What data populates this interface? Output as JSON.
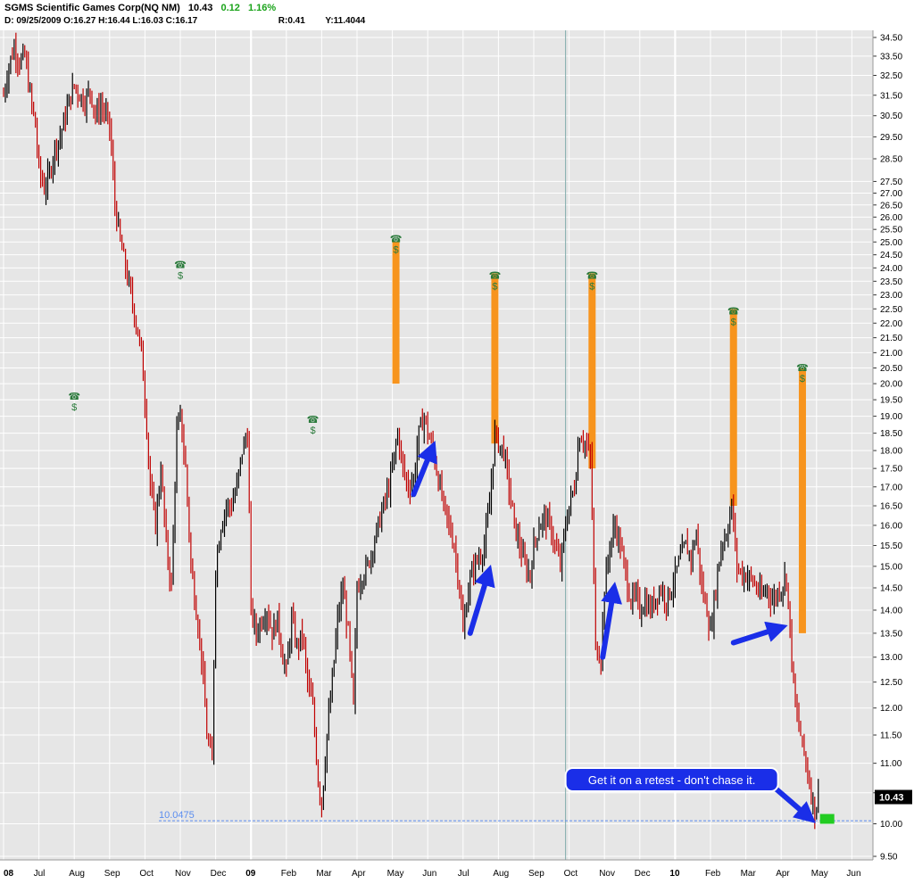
{
  "header": {
    "symbol_name": "SGMS Scientific Games Corp(NQ NM)",
    "last": "10.43",
    "change": "0.12",
    "change_pct": "1.16%",
    "date_line": "D:  09/25/2009  O:16.27  H:16.44  L:16.03  C:16.17",
    "r_value": "R:0.41",
    "y_value": "Y:11.4044"
  },
  "colors": {
    "up_candle": "#000000",
    "down_candle": "#c00000",
    "event_bar": "#f7941d",
    "arrow": "#1a2ee8",
    "price_tag_bg": "#000000",
    "current_marker": "#22cc22",
    "support_line": "#5b8def",
    "plot_bg": "#e6e6e6",
    "grid": "#ffffff"
  },
  "chart_data": {
    "type": "candlestick",
    "y_scale": "log",
    "ylim": [
      9.3,
      35.0
    ],
    "y_ticks": [
      "34.50",
      "33.50",
      "32.50",
      "31.50",
      "30.50",
      "29.50",
      "28.50",
      "27.50",
      "27.00",
      "26.50",
      "26.00",
      "25.50",
      "25.00",
      "24.50",
      "24.00",
      "23.50",
      "23.00",
      "22.50",
      "22.00",
      "21.50",
      "21.00",
      "20.50",
      "20.00",
      "19.50",
      "19.00",
      "18.50",
      "18.00",
      "17.50",
      "17.00",
      "16.50",
      "16.00",
      "15.50",
      "15.00",
      "14.50",
      "14.00",
      "13.50",
      "13.00",
      "12.50",
      "12.00",
      "11.50",
      "11.00",
      "10.50",
      "10.00",
      "9.50"
    ],
    "x_labels": [
      "08",
      "Jul",
      "Aug",
      "Sep",
      "Oct",
      "Nov",
      "Dec",
      "09",
      "Feb",
      "Mar",
      "Apr",
      "May",
      "Jun",
      "Jul",
      "Aug",
      "Sep",
      "Oct",
      "Nov",
      "Dec",
      "10",
      "Feb",
      "Mar",
      "Apr",
      "May",
      "Jun"
    ],
    "x_label_month_index": [
      0,
      1,
      2,
      3,
      4,
      5,
      6,
      7,
      8,
      9,
      10,
      11,
      12,
      13,
      14,
      15,
      16,
      17,
      18,
      19,
      20,
      21,
      22,
      23,
      24
    ],
    "close_path": [
      [
        0.0,
        31.5
      ],
      [
        0.15,
        33.0
      ],
      [
        0.3,
        34.0
      ],
      [
        0.45,
        33.2
      ],
      [
        0.6,
        33.5
      ],
      [
        0.75,
        31.5
      ],
      [
        0.9,
        30.0
      ],
      [
        1.0,
        28.0
      ],
      [
        1.15,
        27.2
      ],
      [
        1.3,
        27.8
      ],
      [
        1.45,
        29.0
      ],
      [
        1.6,
        29.5
      ],
      [
        1.75,
        30.5
      ],
      [
        1.9,
        31.5
      ],
      [
        2.0,
        32.0
      ],
      [
        2.15,
        31.5
      ],
      [
        2.3,
        31.2
      ],
      [
        2.45,
        31.8
      ],
      [
        2.6,
        30.5
      ],
      [
        2.75,
        31.0
      ],
      [
        2.9,
        30.5
      ],
      [
        3.0,
        30.0
      ],
      [
        3.15,
        26.5
      ],
      [
        3.3,
        25.0
      ],
      [
        3.45,
        24.0
      ],
      [
        3.6,
        23.0
      ],
      [
        3.75,
        22.0
      ],
      [
        3.9,
        21.0
      ],
      [
        4.0,
        19.5
      ],
      [
        4.15,
        17.0
      ],
      [
        4.3,
        16.0
      ],
      [
        4.45,
        17.5
      ],
      [
        4.6,
        15.5
      ],
      [
        4.75,
        14.5
      ],
      [
        4.9,
        18.5
      ],
      [
        5.0,
        19.0
      ],
      [
        5.15,
        17.5
      ],
      [
        5.3,
        15.0
      ],
      [
        5.45,
        14.0
      ],
      [
        5.6,
        13.0
      ],
      [
        5.75,
        11.5
      ],
      [
        5.9,
        11.0
      ],
      [
        6.0,
        15.0
      ],
      [
        6.15,
        16.0
      ],
      [
        6.3,
        16.5
      ],
      [
        6.45,
        16.5
      ],
      [
        6.6,
        17.0
      ],
      [
        6.75,
        18.0
      ],
      [
        6.9,
        18.5
      ],
      [
        7.0,
        14.0
      ],
      [
        7.15,
        13.5
      ],
      [
        7.3,
        13.8
      ],
      [
        7.45,
        14.0
      ],
      [
        7.6,
        13.5
      ],
      [
        7.75,
        13.8
      ],
      [
        7.9,
        13.0
      ],
      [
        8.0,
        12.7
      ],
      [
        8.15,
        13.8
      ],
      [
        8.3,
        13.2
      ],
      [
        8.45,
        13.5
      ],
      [
        8.6,
        12.5
      ],
      [
        8.75,
        12.0
      ],
      [
        8.9,
        10.7
      ],
      [
        9.0,
        10.3
      ],
      [
        9.15,
        11.5
      ],
      [
        9.3,
        12.5
      ],
      [
        9.45,
        13.8
      ],
      [
        9.6,
        14.5
      ],
      [
        9.75,
        13.5
      ],
      [
        9.9,
        12.0
      ],
      [
        10.0,
        14.5
      ],
      [
        10.15,
        14.8
      ],
      [
        10.3,
        15.0
      ],
      [
        10.45,
        15.5
      ],
      [
        10.6,
        16.0
      ],
      [
        10.75,
        16.5
      ],
      [
        10.9,
        17.0
      ],
      [
        11.0,
        17.5
      ],
      [
        11.15,
        18.5
      ],
      [
        11.3,
        17.5
      ],
      [
        11.45,
        17.0
      ],
      [
        11.6,
        17.2
      ],
      [
        11.75,
        18.5
      ],
      [
        11.9,
        19.0
      ],
      [
        12.0,
        18.5
      ],
      [
        12.15,
        18.0
      ],
      [
        12.3,
        17.2
      ],
      [
        12.45,
        16.5
      ],
      [
        12.6,
        16.0
      ],
      [
        12.75,
        15.5
      ],
      [
        12.9,
        14.5
      ],
      [
        13.0,
        13.5
      ],
      [
        13.15,
        14.5
      ],
      [
        13.3,
        15.0
      ],
      [
        13.45,
        15.2
      ],
      [
        13.6,
        15.5
      ],
      [
        13.75,
        16.5
      ],
      [
        13.9,
        18.5
      ],
      [
        14.0,
        18.2
      ],
      [
        14.15,
        18.0
      ],
      [
        14.3,
        17.0
      ],
      [
        14.45,
        16.0
      ],
      [
        14.6,
        15.5
      ],
      [
        14.75,
        15.0
      ],
      [
        14.9,
        14.8
      ],
      [
        15.0,
        15.5
      ],
      [
        15.15,
        16.0
      ],
      [
        15.3,
        16.2
      ],
      [
        15.45,
        16.0
      ],
      [
        15.6,
        15.5
      ],
      [
        15.75,
        15.0
      ],
      [
        15.9,
        16.0
      ],
      [
        16.0,
        16.5
      ],
      [
        16.15,
        17.0
      ],
      [
        16.3,
        18.5
      ],
      [
        16.45,
        18.2
      ],
      [
        16.6,
        17.8
      ],
      [
        16.75,
        13.2
      ],
      [
        16.9,
        13.0
      ],
      [
        17.0,
        14.5
      ],
      [
        17.15,
        15.5
      ],
      [
        17.3,
        16.0
      ],
      [
        17.45,
        15.5
      ],
      [
        17.6,
        14.8
      ],
      [
        17.75,
        14.2
      ],
      [
        17.9,
        14.3
      ],
      [
        18.0,
        14.0
      ],
      [
        18.15,
        14.2
      ],
      [
        18.3,
        14.0
      ],
      [
        18.45,
        14.3
      ],
      [
        18.6,
        14.5
      ],
      [
        18.75,
        14.2
      ],
      [
        18.9,
        14.5
      ],
      [
        19.0,
        14.8
      ],
      [
        19.15,
        15.2
      ],
      [
        19.3,
        15.5
      ],
      [
        19.45,
        15.2
      ],
      [
        19.6,
        15.8
      ],
      [
        19.75,
        14.5
      ],
      [
        19.9,
        14.0
      ],
      [
        20.0,
        13.5
      ],
      [
        20.15,
        14.5
      ],
      [
        20.3,
        15.5
      ],
      [
        20.45,
        15.8
      ],
      [
        20.6,
        16.5
      ],
      [
        20.75,
        15.0
      ],
      [
        20.9,
        14.8
      ],
      [
        21.0,
        14.8
      ],
      [
        21.15,
        14.7
      ],
      [
        21.3,
        14.5
      ],
      [
        21.45,
        14.3
      ],
      [
        21.6,
        14.5
      ],
      [
        21.75,
        14.2
      ],
      [
        21.9,
        14.4
      ],
      [
        22.0,
        14.5
      ],
      [
        22.15,
        14.8
      ],
      [
        22.25,
        13.5
      ],
      [
        22.4,
        12.0
      ],
      [
        22.55,
        11.5
      ],
      [
        22.7,
        11.0
      ],
      [
        22.85,
        10.5
      ],
      [
        22.95,
        10.2
      ],
      [
        23.05,
        10.43
      ]
    ],
    "event_bars": [
      {
        "month": 11.1,
        "from": 20.0,
        "to": 25.0
      },
      {
        "month": 13.9,
        "from": 18.2,
        "to": 23.8
      },
      {
        "month": 16.65,
        "from": 17.5,
        "to": 23.8
      },
      {
        "month": 20.65,
        "from": 16.5,
        "to": 22.5
      },
      {
        "month": 22.6,
        "from": 13.5,
        "to": 20.5
      }
    ],
    "event_icons": [
      {
        "month": 2.0,
        "price": 19.5
      },
      {
        "month": 5.0,
        "price": 24.0
      },
      {
        "month": 8.75,
        "price": 18.8
      },
      {
        "month": 11.1,
        "price": 25.0
      },
      {
        "month": 13.9,
        "price": 23.6
      },
      {
        "month": 16.65,
        "price": 23.6
      },
      {
        "month": 20.65,
        "price": 22.3
      },
      {
        "month": 22.6,
        "price": 20.4
      }
    ],
    "arrows": [
      {
        "from": [
          11.6,
          16.8
        ],
        "to": [
          12.1,
          18.0
        ]
      },
      {
        "from": [
          13.2,
          13.5
        ],
        "to": [
          13.7,
          14.8
        ]
      },
      {
        "from": [
          16.95,
          13.0
        ],
        "to": [
          17.25,
          14.4
        ]
      },
      {
        "from": [
          20.65,
          13.3
        ],
        "to": [
          21.9,
          13.6
        ]
      },
      {
        "from": [
          21.55,
          10.72
        ],
        "to": [
          22.75,
          10.12
        ]
      }
    ],
    "support_level": 10.0475,
    "support_label": "10.0475",
    "current_price": 10.43,
    "current_price_label": "10.43",
    "callout": "Get it on a retest - don't chase it.",
    "vertical_marker_month": 15.9
  }
}
